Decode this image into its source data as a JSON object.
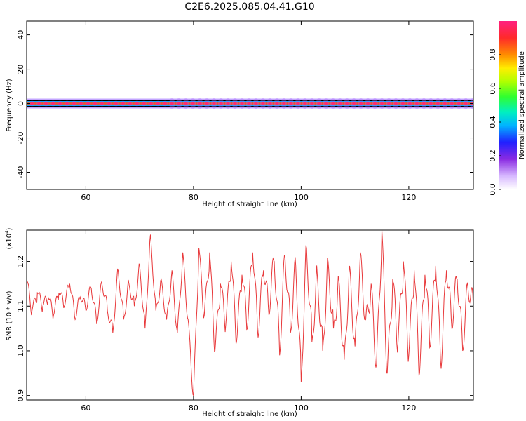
{
  "title": "C2E6.2025.085.04.41.G10",
  "chart_data": [
    {
      "type": "heatmap",
      "xlabel": "Height of straight line (km)",
      "ylabel": "Frequency (Hz)",
      "xlim": [
        49,
        132
      ],
      "ylim": [
        -50,
        48
      ],
      "xticks": [
        60,
        80,
        100,
        120
      ],
      "yticks": [
        40,
        20,
        0,
        -20,
        -40
      ],
      "signal_frequency_hz": 0,
      "colorbar": {
        "label": "Normalized spectral amplitude",
        "range": [
          0.0,
          1.0
        ],
        "ticks": [
          0.0,
          0.2,
          0.4,
          0.6,
          0.8
        ]
      }
    },
    {
      "type": "line",
      "xlabel": "Height of straight line (km)",
      "ylabel": "SNR (10 * v/v)",
      "y_multiplier": "(x10^4)",
      "xlim": [
        49,
        132
      ],
      "ylim": [
        0.89,
        1.27
      ],
      "xticks": [
        60,
        80,
        100,
        120
      ],
      "yticks": [
        1.2,
        1.1,
        1.0,
        0.9
      ],
      "series": [
        {
          "color": "#e8383a",
          "x": [
            49,
            50,
            51,
            52,
            53,
            54,
            55,
            56,
            57,
            58,
            59,
            60,
            61,
            62,
            63,
            64,
            65,
            66,
            67,
            68,
            69,
            70,
            71,
            72,
            73,
            74,
            75,
            76,
            77,
            78,
            79,
            80,
            81,
            82,
            83,
            84,
            85,
            86,
            87,
            88,
            89,
            90,
            91,
            92,
            93,
            94,
            95,
            96,
            97,
            98,
            99,
            100,
            101,
            102,
            103,
            104,
            105,
            106,
            107,
            108,
            109,
            110,
            111,
            112,
            113,
            114,
            115,
            116,
            117,
            118,
            119,
            120,
            121,
            122,
            123,
            124,
            125,
            126,
            127,
            128,
            129,
            130,
            131,
            132
          ],
          "y": [
            1.16,
            1.09,
            1.13,
            1.1,
            1.12,
            1.08,
            1.13,
            1.1,
            1.15,
            1.07,
            1.12,
            1.09,
            1.14,
            1.06,
            1.15,
            1.09,
            1.04,
            1.18,
            1.07,
            1.15,
            1.1,
            1.19,
            1.05,
            1.26,
            1.09,
            1.16,
            1.07,
            1.18,
            1.04,
            1.22,
            1.07,
            0.9,
            1.23,
            1.08,
            1.22,
            1.0,
            1.15,
            1.06,
            1.2,
            1.02,
            1.17,
            1.05,
            1.22,
            1.03,
            1.18,
            1.08,
            1.2,
            0.99,
            1.21,
            1.04,
            1.19,
            0.93,
            1.23,
            1.02,
            1.17,
            1.0,
            1.2,
            1.05,
            1.16,
            0.98,
            1.19,
            1.01,
            1.22,
            1.07,
            1.15,
            0.97,
            1.27,
            0.95,
            1.16,
            1.02,
            1.2,
            0.99,
            1.18,
            0.95,
            1.17,
            1.01,
            1.19,
            0.96,
            1.18,
            1.05,
            1.16,
            1.0,
            1.14,
            1.09
          ]
        }
      ]
    }
  ]
}
